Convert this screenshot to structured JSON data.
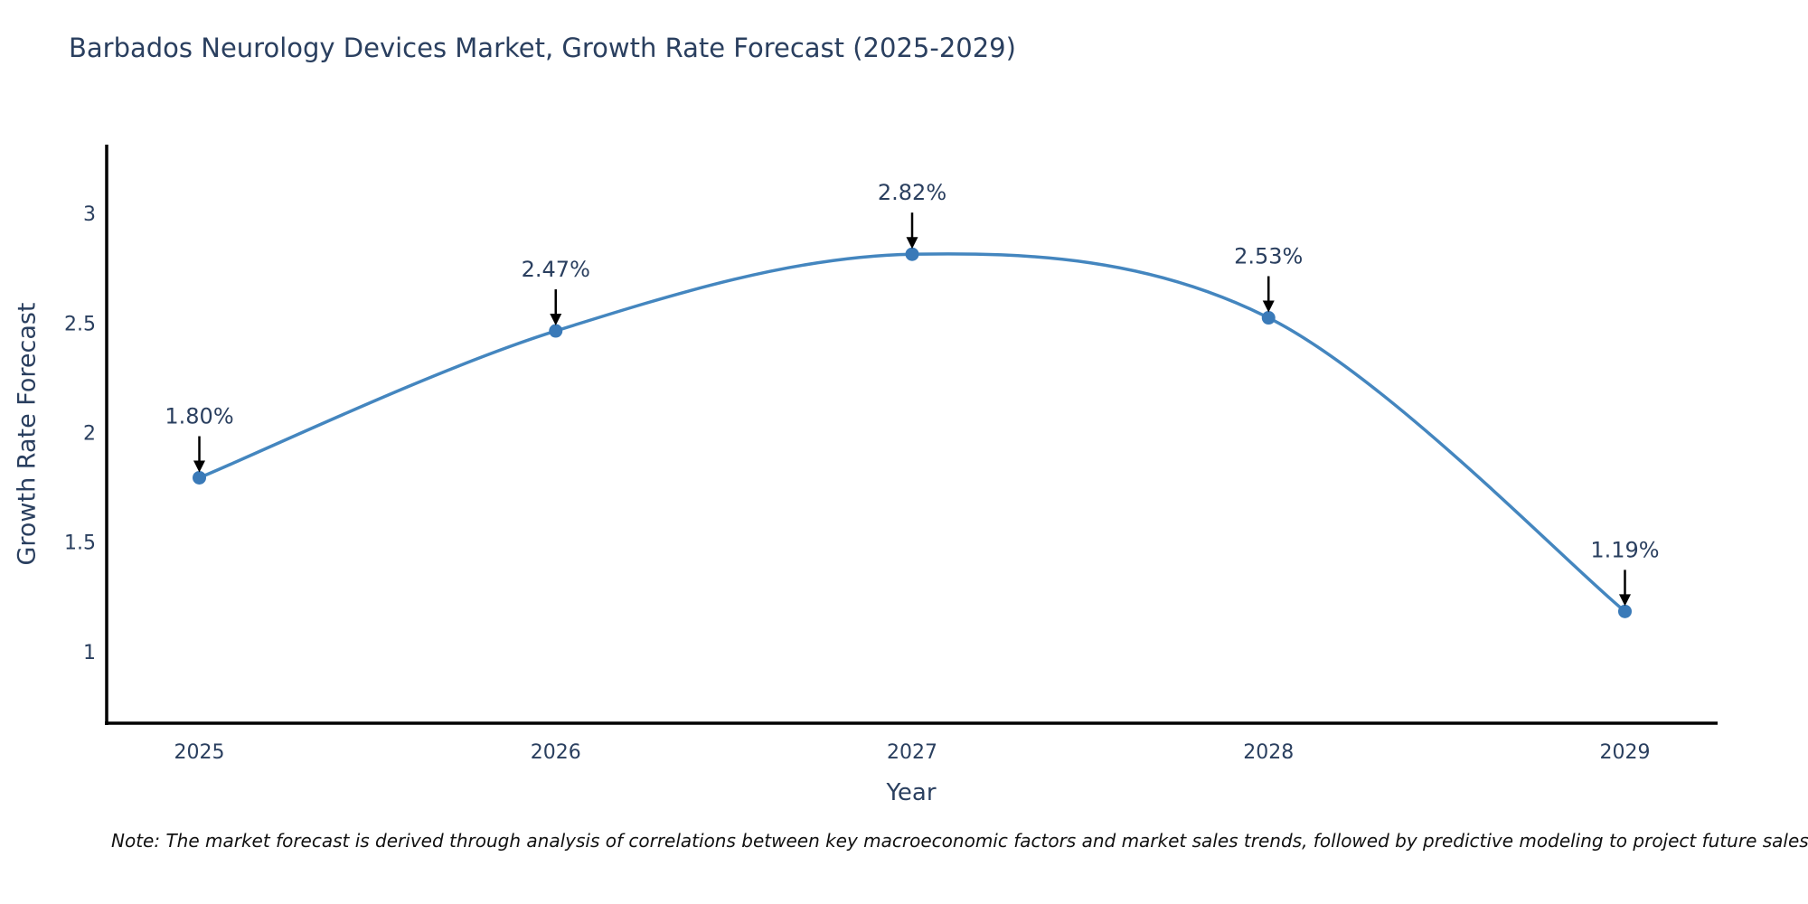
{
  "title": "Barbados Neurology Devices Market, Growth Rate Forecast (2025-2029)",
  "note": "Note: The market forecast is derived through analysis of correlations between key macroeconomic factors and market sales trends, followed by predictive modeling to project future sales",
  "chart_data": {
    "type": "line",
    "title": "Barbados Neurology Devices Market, Growth Rate Forecast (2025-2029)",
    "xlabel": "Year",
    "ylabel": "Growth Rate Forecast",
    "x": [
      2025,
      2026,
      2027,
      2028,
      2029
    ],
    "series": [
      {
        "name": "Growth Rate Forecast",
        "values": [
          1.8,
          2.47,
          2.82,
          2.53,
          1.19
        ]
      }
    ],
    "point_labels": [
      "1.80%",
      "2.47%",
      "2.82%",
      "2.53%",
      "1.19%"
    ],
    "xtick_labels": [
      "2025",
      "2026",
      "2027",
      "2028",
      "2029"
    ],
    "yticks": [
      1,
      1.5,
      2,
      2.5,
      3
    ],
    "ytick_labels": [
      "1",
      "1.5",
      "2",
      "2.5",
      "3"
    ],
    "xlim": [
      2024.74,
      2029.26
    ],
    "ylim": [
      0.68,
      3.32
    ],
    "line_shape": "spline",
    "grid": false,
    "legend_position": "none",
    "annotation_arrows": true,
    "colors": {
      "line": "#4486bf",
      "marker": "#3a7ab8",
      "axis": "#000000",
      "text": "#2a3f5f",
      "annotation_arrow": "#000000",
      "note_text": "#111111",
      "background": "#ffffff"
    }
  }
}
